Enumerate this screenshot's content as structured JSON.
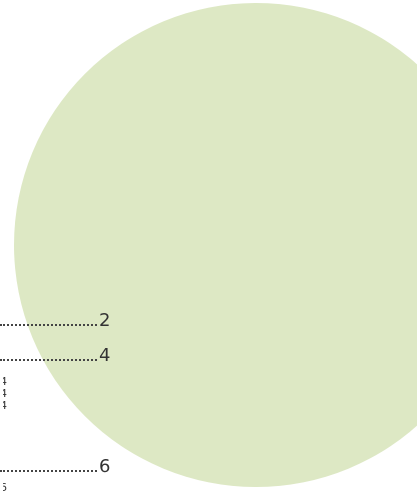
{
  "toc": {
    "entries": [
      {
        "page": "2"
      },
      {
        "page": "4"
      },
      {
        "page": "6"
      }
    ],
    "sub_entries": [
      {
        "page": "4"
      },
      {
        "page": "4"
      },
      {
        "page": "4"
      },
      {
        "page": "6"
      }
    ]
  },
  "colors": {
    "circle": "#dde8c4",
    "text": "#333333",
    "background": "#ffffff"
  }
}
